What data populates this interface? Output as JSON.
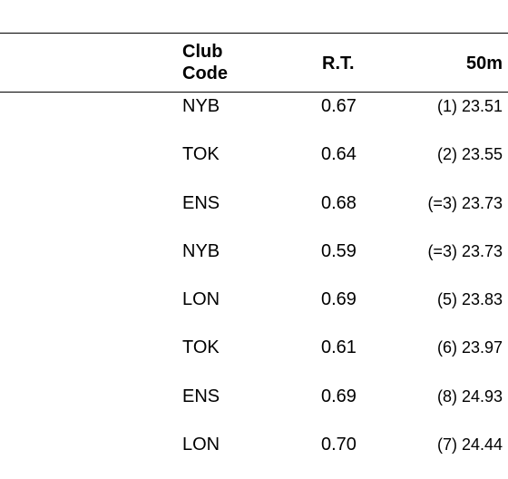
{
  "table": {
    "headers": {
      "club_line1": "Club",
      "club_line2": "Code",
      "rt": "R.T.",
      "split": "50m"
    },
    "rows": [
      {
        "club": "NYB",
        "rt": "0.67",
        "split": "(1) 23.51"
      },
      {
        "club": "TOK",
        "rt": "0.64",
        "split": "(2) 23.55"
      },
      {
        "club": "ENS",
        "rt": "0.68",
        "split": "(=3) 23.73"
      },
      {
        "club": "NYB",
        "rt": "0.59",
        "split": "(=3) 23.73"
      },
      {
        "club": "LON",
        "rt": "0.69",
        "split": "(5) 23.83"
      },
      {
        "club": "TOK",
        "rt": "0.61",
        "split": "(6) 23.97"
      },
      {
        "club": "ENS",
        "rt": "0.69",
        "split": "(8) 24.93"
      },
      {
        "club": "LON",
        "rt": "0.70",
        "split": "(7) 24.44"
      }
    ]
  }
}
